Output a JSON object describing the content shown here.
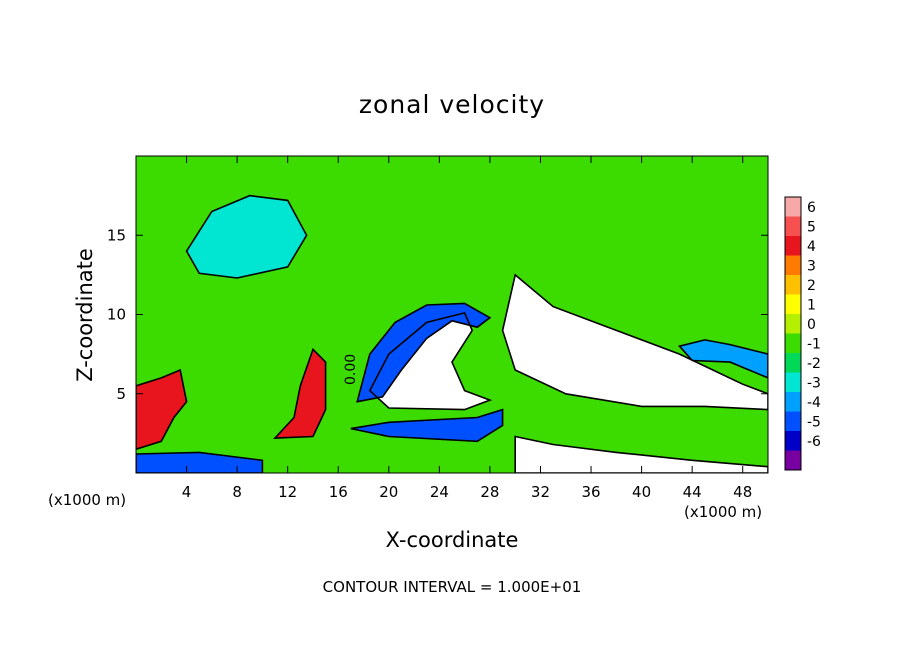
{
  "chart_data": {
    "type": "heatmap",
    "title": "zonal velocity",
    "xlabel": "X-coordinate",
    "ylabel": "Z-coordinate",
    "x_unit_left": "(x1000 m)",
    "x_unit_right": "(x1000 m)",
    "xlim": [
      0,
      50
    ],
    "ylim": [
      0,
      20
    ],
    "x_ticks": [
      4,
      8,
      12,
      16,
      20,
      24,
      28,
      32,
      36,
      40,
      44,
      48
    ],
    "y_ticks": [
      5,
      10,
      15
    ],
    "colorbar": {
      "ticks": [
        6,
        5,
        4,
        3,
        2,
        1,
        0,
        -1,
        -2,
        -3,
        -4,
        -5,
        -6
      ],
      "colors": [
        "#f7a8a8",
        "#f75050",
        "#e8141e",
        "#ff7a00",
        "#ffc000",
        "#ffff00",
        "#b4f000",
        "#3cdc00",
        "#00d858",
        "#00e6d2",
        "#00a0ff",
        "#0050ff",
        "#0000c8",
        "#7800a0"
      ]
    },
    "contour_label": "0.00",
    "footer": "CONTOUR INTERVAL = 1.000E+01",
    "regions": [
      {
        "value": 6.5,
        "points": [
          [
            30,
            12.5
          ],
          [
            33,
            10.5
          ],
          [
            38,
            9
          ],
          [
            43,
            7.5
          ],
          [
            48,
            5.6
          ],
          [
            50,
            5
          ],
          [
            50,
            4
          ],
          [
            45,
            4.2
          ],
          [
            40,
            4.2
          ],
          [
            34,
            5
          ],
          [
            30,
            6.5
          ],
          [
            29,
            9
          ]
        ]
      },
      {
        "value": 6.5,
        "points": [
          [
            18.5,
            5.2
          ],
          [
            20,
            7.5
          ],
          [
            23,
            9.5
          ],
          [
            26,
            10.1
          ],
          [
            26.6,
            9
          ],
          [
            25,
            7
          ],
          [
            26,
            5.2
          ],
          [
            28,
            4.6
          ],
          [
            26,
            4
          ],
          [
            20,
            4.1
          ]
        ]
      },
      {
        "value": 6.5,
        "points": [
          [
            30,
            2.3
          ],
          [
            33,
            1.8
          ],
          [
            38,
            1.3
          ],
          [
            44,
            0.8
          ],
          [
            50,
            0.4
          ],
          [
            50,
            0
          ],
          [
            30,
            0
          ]
        ]
      },
      {
        "value": 4.5,
        "points": [
          [
            0,
            1.5
          ],
          [
            2,
            2
          ],
          [
            3,
            3.5
          ],
          [
            4,
            4.5
          ],
          [
            3.5,
            6.5
          ],
          [
            2,
            6
          ],
          [
            0,
            5.5
          ]
        ]
      },
      {
        "value": 4.5,
        "points": [
          [
            11,
            2.2
          ],
          [
            12.5,
            3.5
          ],
          [
            13,
            5.5
          ],
          [
            14,
            7.8
          ],
          [
            15,
            7
          ],
          [
            15,
            4
          ],
          [
            14,
            2.3
          ]
        ]
      },
      {
        "value": -4.5,
        "points": [
          [
            0,
            0
          ],
          [
            10,
            0
          ],
          [
            10,
            0.8
          ],
          [
            5,
            1.3
          ],
          [
            0,
            1.2
          ]
        ]
      },
      {
        "value": -4.5,
        "points": [
          [
            17,
            2.8
          ],
          [
            20,
            2.3
          ],
          [
            27,
            2
          ],
          [
            29,
            3
          ],
          [
            29,
            4
          ],
          [
            27,
            3.5
          ],
          [
            20,
            3.2
          ]
        ]
      },
      {
        "value": -4.5,
        "points": [
          [
            17.5,
            4.5
          ],
          [
            18.5,
            7.5
          ],
          [
            20.5,
            9.5
          ],
          [
            23,
            10.6
          ],
          [
            26,
            10.7
          ],
          [
            28,
            9.8
          ],
          [
            27,
            9.2
          ],
          [
            25,
            9.6
          ],
          [
            23,
            8.5
          ],
          [
            21,
            6.5
          ],
          [
            19.5,
            4.8
          ]
        ]
      },
      {
        "value": -3.5,
        "points": [
          [
            43,
            8
          ],
          [
            45,
            8.4
          ],
          [
            47,
            8.1
          ],
          [
            50,
            7.5
          ],
          [
            50,
            6
          ],
          [
            47,
            7
          ],
          [
            44,
            7.1
          ]
        ]
      },
      {
        "value": -2,
        "points": [
          [
            4,
            14
          ],
          [
            6,
            16.5
          ],
          [
            9,
            17.5
          ],
          [
            12,
            17.2
          ],
          [
            13.5,
            15
          ],
          [
            12,
            13
          ],
          [
            8,
            12.3
          ],
          [
            5,
            12.6
          ]
        ]
      }
    ]
  }
}
